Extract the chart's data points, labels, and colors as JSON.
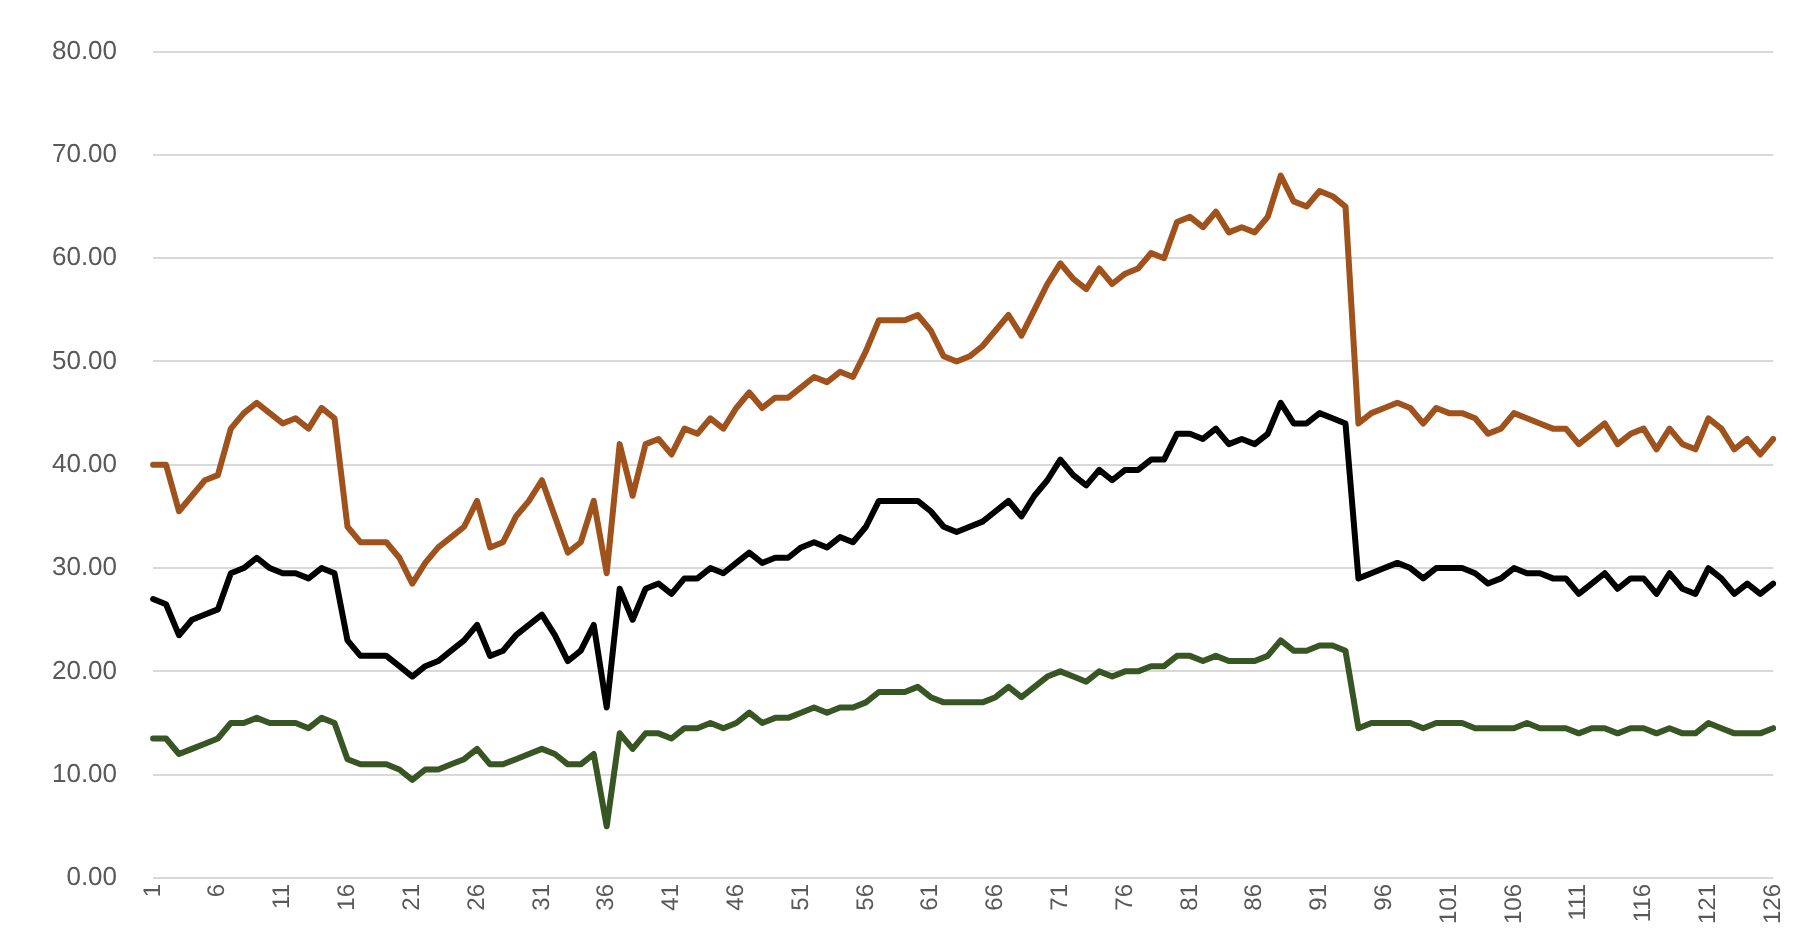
{
  "chart_data": {
    "type": "line",
    "categories": [
      "1",
      null,
      null,
      null,
      null,
      "6",
      null,
      null,
      null,
      null,
      "11",
      null,
      null,
      null,
      null,
      "16",
      null,
      null,
      null,
      null,
      "21",
      null,
      null,
      null,
      null,
      "26",
      null,
      null,
      null,
      null,
      "31",
      null,
      null,
      null,
      null,
      "36",
      null,
      null,
      null,
      null,
      "41",
      null,
      null,
      null,
      null,
      "46",
      null,
      null,
      null,
      null,
      "51",
      null,
      null,
      null,
      null,
      "56",
      null,
      null,
      null,
      null,
      "61",
      null,
      null,
      null,
      null,
      "66",
      null,
      null,
      null,
      null,
      "71",
      null,
      null,
      null,
      null,
      "76",
      null,
      null,
      null,
      null,
      "81",
      null,
      null,
      null,
      null,
      "86",
      null,
      null,
      null,
      null,
      "91",
      null,
      null,
      null,
      null,
      "96",
      null,
      null,
      null,
      null,
      "101",
      null,
      null,
      null,
      null,
      "106",
      null,
      null,
      null,
      null,
      "111",
      null,
      null,
      null,
      null,
      "116",
      null,
      null,
      null,
      null,
      "121",
      null,
      null,
      null,
      null,
      "126"
    ],
    "series": [
      {
        "color": "#a0521c",
        "values": [
          40,
          40,
          35.5,
          37,
          38.5,
          39,
          43.5,
          45,
          46,
          45,
          44,
          44.5,
          43.5,
          45.5,
          44.5,
          34,
          32.5,
          32.5,
          32.5,
          31,
          28.5,
          30.5,
          32,
          33,
          34,
          36.5,
          32,
          32.5,
          35,
          36.5,
          38.5,
          35,
          31.5,
          32.5,
          36.5,
          29.5,
          42,
          37,
          42,
          42.5,
          41,
          43.5,
          43,
          44.5,
          43.5,
          45.5,
          47,
          45.5,
          46.5,
          46.5,
          47.5,
          48.5,
          48,
          49,
          48.5,
          51,
          54,
          54,
          54,
          54.5,
          53,
          50.5,
          50,
          50.5,
          51.5,
          53,
          54.5,
          52.5,
          55,
          57.5,
          59.5,
          58,
          57,
          59,
          57.5,
          58.5,
          59,
          60.5,
          60,
          63.5,
          64,
          63,
          64.5,
          62.5,
          63,
          62.5,
          64,
          68,
          65.5,
          65,
          66.5,
          66,
          65,
          44,
          45,
          45.5,
          46,
          45.5,
          44,
          45.5,
          45,
          45,
          44.5,
          43,
          43.5,
          45,
          44.5,
          44,
          43.5,
          43.5,
          42,
          43,
          44,
          42,
          43,
          43.5,
          41.5,
          43.5,
          42,
          41.5,
          44.5,
          43.5,
          41.5,
          42.5,
          41,
          42.5
        ]
      },
      {
        "color": "#000000",
        "values": [
          27,
          26.5,
          23.5,
          25,
          25.5,
          26,
          29.5,
          30,
          31,
          30,
          29.5,
          29.5,
          29,
          30,
          29.5,
          23,
          21.5,
          21.5,
          21.5,
          20.5,
          19.5,
          20.5,
          21,
          22,
          23,
          24.5,
          21.5,
          22,
          23.5,
          24.5,
          25.5,
          23.5,
          21,
          22,
          24.5,
          16.5,
          28,
          25,
          28,
          28.5,
          27.5,
          29,
          29,
          30,
          29.5,
          30.5,
          31.5,
          30.5,
          31,
          31,
          32,
          32.5,
          32,
          33,
          32.5,
          34,
          36.5,
          36.5,
          36.5,
          36.5,
          35.5,
          34,
          33.5,
          34,
          34.5,
          35.5,
          36.5,
          35,
          37,
          38.5,
          40.5,
          39,
          38,
          39.5,
          38.5,
          39.5,
          39.5,
          40.5,
          40.5,
          43,
          43,
          42.5,
          43.5,
          42,
          42.5,
          42,
          43,
          46,
          44,
          44,
          45,
          44.5,
          44,
          29,
          29.5,
          30,
          30.5,
          30,
          29,
          30,
          30,
          30,
          29.5,
          28.5,
          29,
          30,
          29.5,
          29.5,
          29,
          29,
          27.5,
          28.5,
          29.5,
          28,
          29,
          29,
          27.5,
          29.5,
          28,
          27.5,
          30,
          29,
          27.5,
          28.5,
          27.5,
          28.5
        ]
      },
      {
        "color": "#375623",
        "values": [
          13.5,
          13.5,
          12,
          12.5,
          13,
          13.5,
          15,
          15,
          15.5,
          15,
          15,
          15,
          14.5,
          15.5,
          15,
          11.5,
          11,
          11,
          11,
          10.5,
          9.5,
          10.5,
          10.5,
          11,
          11.5,
          12.5,
          11,
          11,
          11.5,
          12,
          12.5,
          12,
          11,
          11,
          12,
          5,
          14,
          12.5,
          14,
          14,
          13.5,
          14.5,
          14.5,
          15,
          14.5,
          15,
          16,
          15,
          15.5,
          15.5,
          16,
          16.5,
          16,
          16.5,
          16.5,
          17,
          18,
          18,
          18,
          18.5,
          17.5,
          17,
          17,
          17,
          17,
          17.5,
          18.5,
          17.5,
          18.5,
          19.5,
          20,
          19.5,
          19,
          20,
          19.5,
          20,
          20,
          20.5,
          20.5,
          21.5,
          21.5,
          21,
          21.5,
          21,
          21,
          21,
          21.5,
          23,
          22,
          22,
          22.5,
          22.5,
          22,
          14.5,
          15,
          15,
          15,
          15,
          14.5,
          15,
          15,
          15,
          14.5,
          14.5,
          14.5,
          14.5,
          15,
          14.5,
          14.5,
          14.5,
          14,
          14.5,
          14.5,
          14,
          14.5,
          14.5,
          14,
          14.5,
          14,
          14,
          15,
          14.5,
          14,
          14,
          14,
          14.5
        ]
      }
    ],
    "ylim": [
      0,
      80
    ],
    "yticks": [
      {
        "value": 0,
        "label": "0.00"
      },
      {
        "value": 10,
        "label": "10.00"
      },
      {
        "value": 20,
        "label": "20.00"
      },
      {
        "value": 30,
        "label": "30.00"
      },
      {
        "value": 40,
        "label": "40.00"
      },
      {
        "value": 50,
        "label": "50.00"
      },
      {
        "value": 60,
        "label": "60.00"
      },
      {
        "value": 70,
        "label": "70.00"
      },
      {
        "value": 80,
        "label": "80.00"
      }
    ],
    "grid": "y",
    "legend": false,
    "marker": "none",
    "line_style": "solid"
  }
}
